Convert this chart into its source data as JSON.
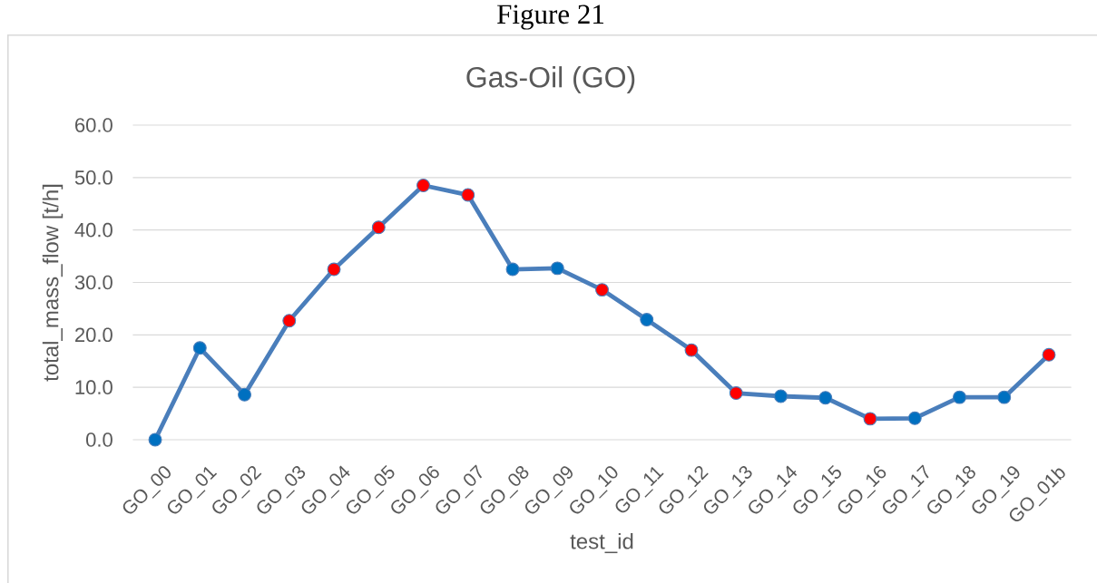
{
  "chart_data": {
    "type": "line",
    "title": "Gas-Oil (GO)",
    "xlabel": "test_id",
    "ylabel": "total_mass_flow [t/h]",
    "annotations": [
      "Figure 21"
    ],
    "categories": [
      "GO_00",
      "GO_01",
      "GO_02",
      "GO_03",
      "GO_04",
      "GO_05",
      "GO_06",
      "GO_07",
      "GO_08",
      "GO_09",
      "GO_10",
      "GO_11",
      "GO_12",
      "GO_13",
      "GO_14",
      "GO_15",
      "GO_16",
      "GO_17",
      "GO_18",
      "GO_19",
      "GO_01b"
    ],
    "series": [
      {
        "color": "#4a7ebb",
        "colors": [
          "#0070c0",
          "#0070c0",
          "#0070c0",
          "#ff0000",
          "#ff0000",
          "#ff0000",
          "#ff0000",
          "#ff0000",
          "#0070c0",
          "#0070c0",
          "#ff0000",
          "#0070c0",
          "#ff0000",
          "#ff0000",
          "#0070c0",
          "#0070c0",
          "#ff0000",
          "#0070c0",
          "#0070c0",
          "#0070c0",
          "#ff0000"
        ],
        "values": [
          0.0,
          17.5,
          8.6,
          22.7,
          32.5,
          40.5,
          48.5,
          46.7,
          32.5,
          32.7,
          28.6,
          22.9,
          17.1,
          8.9,
          8.3,
          8.0,
          4.0,
          4.1,
          8.1,
          8.1,
          16.2
        ]
      }
    ],
    "ylim": [
      0,
      60
    ],
    "yticks": [
      {
        "value": 0,
        "label": "0.0"
      },
      {
        "value": 10,
        "label": "10.0"
      },
      {
        "value": 20,
        "label": "20.0"
      },
      {
        "value": 30,
        "label": "30.0"
      },
      {
        "value": 40,
        "label": "40.0"
      },
      {
        "value": 50,
        "label": "50.0"
      },
      {
        "value": 60,
        "label": "60.0"
      }
    ],
    "grid": "y",
    "marker": "circle",
    "line_style": "solid"
  }
}
